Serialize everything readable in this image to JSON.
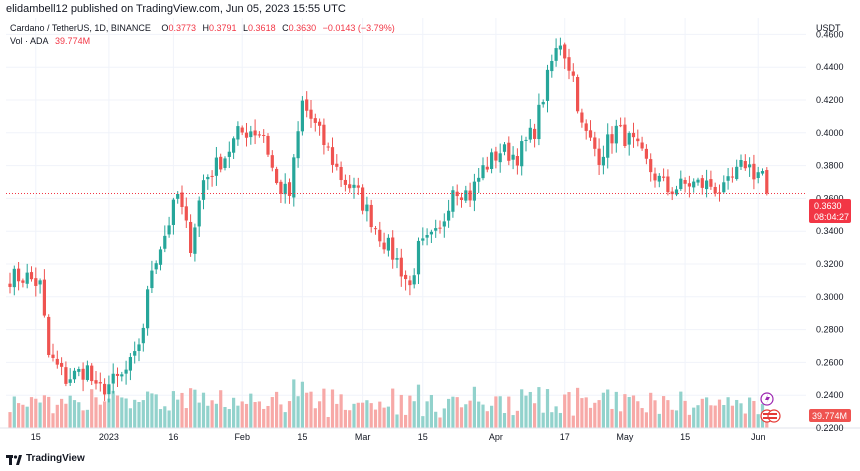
{
  "header": {
    "published_line": "elidambell12 published on TradingView.com, Jun 05, 2023 15:55 UTC"
  },
  "legend": {
    "symbol": "Cardano / TetherUS, 1D, BINANCE",
    "open_label": "O",
    "open": "0.3773",
    "high_label": "H",
    "high": "0.3791",
    "low_label": "L",
    "low": "0.3618",
    "close_label": "C",
    "close": "0.3630",
    "change": "−0.0143 (−3.79%)",
    "vol_label": "Vol · ADA",
    "vol_value": "39.774M"
  },
  "footer": {
    "brand": "TradingView"
  },
  "colors": {
    "up": "#26a69a",
    "down": "#ef5350",
    "up_vol": "#92d2cc",
    "down_vol": "#f7a9a7",
    "price_line": "#f23645",
    "grid": "#f0f3fa"
  },
  "chart_data": {
    "type": "candlestick",
    "title": "Cardano / TetherUS, 1D, BINANCE",
    "currency": "USDT",
    "ylim": [
      0.22,
      0.47
    ],
    "y_ticks": [
      "0.2200",
      "0.2400",
      "0.2600",
      "0.2800",
      "0.3000",
      "0.3200",
      "0.3400",
      "0.3600",
      "0.3800",
      "0.4000",
      "0.4200",
      "0.4400",
      "0.4600"
    ],
    "x_ticks": [
      {
        "label": "15",
        "index": 6
      },
      {
        "label": "2023",
        "index": 23
      },
      {
        "label": "16",
        "index": 38
      },
      {
        "label": "Feb",
        "index": 54
      },
      {
        "label": "15",
        "index": 68
      },
      {
        "label": "Mar",
        "index": 82
      },
      {
        "label": "15",
        "index": 96
      },
      {
        "label": "Apr",
        "index": 113
      },
      {
        "label": "17",
        "index": 129
      },
      {
        "label": "May",
        "index": 143
      },
      {
        "label": "15",
        "index": 157
      },
      {
        "label": "Jun",
        "index": 174
      }
    ],
    "last_price": "0.3630",
    "countdown": "08:04:27",
    "last_volume": "39.774M",
    "waypoints": [
      [
        0,
        0.312
      ],
      [
        4,
        0.312
      ],
      [
        7,
        0.307
      ],
      [
        9,
        0.264
      ],
      [
        13,
        0.25
      ],
      [
        18,
        0.256
      ],
      [
        20,
        0.242
      ],
      [
        26,
        0.251
      ],
      [
        29,
        0.262
      ],
      [
        31,
        0.283
      ],
      [
        33,
        0.318
      ],
      [
        36,
        0.338
      ],
      [
        39,
        0.362
      ],
      [
        42,
        0.332
      ],
      [
        45,
        0.371
      ],
      [
        50,
        0.386
      ],
      [
        53,
        0.399
      ],
      [
        56,
        0.402
      ],
      [
        59,
        0.399
      ],
      [
        62,
        0.368
      ],
      [
        65,
        0.362
      ],
      [
        68,
        0.418
      ],
      [
        72,
        0.399
      ],
      [
        77,
        0.373
      ],
      [
        81,
        0.362
      ],
      [
        86,
        0.338
      ],
      [
        90,
        0.322
      ],
      [
        93,
        0.306
      ],
      [
        95,
        0.329
      ],
      [
        100,
        0.339
      ],
      [
        103,
        0.368
      ],
      [
        107,
        0.362
      ],
      [
        110,
        0.378
      ],
      [
        114,
        0.389
      ],
      [
        118,
        0.386
      ],
      [
        122,
        0.402
      ],
      [
        126,
        0.443
      ],
      [
        128,
        0.456
      ],
      [
        131,
        0.434
      ],
      [
        133,
        0.403
      ],
      [
        137,
        0.386
      ],
      [
        141,
        0.402
      ],
      [
        145,
        0.393
      ],
      [
        149,
        0.377
      ],
      [
        153,
        0.365
      ],
      [
        158,
        0.369
      ],
      [
        163,
        0.368
      ],
      [
        166,
        0.364
      ],
      [
        171,
        0.382
      ],
      [
        173,
        0.376
      ],
      [
        176,
        0.376
      ]
    ],
    "last_candle": {
      "open": 0.3773,
      "high": 0.3791,
      "low": 0.3618,
      "close": 0.363
    }
  }
}
